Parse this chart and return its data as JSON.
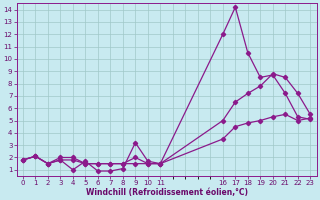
{
  "bg_color": "#c8eaf0",
  "line_color": "#8b1a8b",
  "grid_color": "#a0c8c8",
  "xlabel": "Windchill (Refroidissement éolien,°C)",
  "xlabel_color": "#6b0a6b",
  "tick_color": "#6b0a6b",
  "xlim": [
    -0.5,
    23.5
  ],
  "ylim": [
    0.5,
    14.5
  ],
  "yticks": [
    1,
    2,
    3,
    4,
    5,
    6,
    7,
    8,
    9,
    10,
    11,
    12,
    13,
    14
  ],
  "curve1_x": [
    0,
    1,
    2,
    3,
    4,
    5,
    6,
    7,
    8,
    9,
    10,
    11,
    16,
    17,
    18,
    19,
    20,
    21,
    22,
    23
  ],
  "curve1_y": [
    1.8,
    2.1,
    1.5,
    1.8,
    1.0,
    1.7,
    0.9,
    0.9,
    1.1,
    3.2,
    1.7,
    1.5,
    12.0,
    14.2,
    10.5,
    8.5,
    8.7,
    7.2,
    5.3,
    5.1
  ],
  "curve2_x": [
    0,
    1,
    2,
    3,
    4,
    5,
    6,
    7,
    8,
    9,
    10,
    11,
    16,
    17,
    18,
    19,
    20,
    21,
    22,
    23
  ],
  "curve2_y": [
    1.8,
    2.1,
    1.5,
    1.8,
    1.8,
    1.5,
    1.5,
    1.5,
    1.5,
    1.5,
    1.5,
    1.5,
    5.0,
    6.5,
    7.2,
    7.8,
    8.8,
    8.5,
    7.2,
    5.5
  ],
  "curve3_x": [
    0,
    1,
    2,
    3,
    4,
    5,
    6,
    7,
    8,
    9,
    10,
    11,
    16,
    17,
    18,
    19,
    20,
    21,
    22,
    23
  ],
  "curve3_y": [
    1.8,
    2.1,
    1.5,
    2.0,
    2.0,
    1.5,
    1.5,
    1.5,
    1.5,
    2.0,
    1.5,
    1.5,
    3.5,
    4.5,
    4.8,
    5.0,
    5.3,
    5.5,
    5.0,
    5.2
  ],
  "xtick_positions": [
    0,
    1,
    2,
    3,
    4,
    5,
    6,
    7,
    8,
    9,
    10,
    11,
    16,
    17,
    18,
    19,
    20,
    21,
    22,
    23
  ],
  "xtick_labels": [
    "0",
    "1",
    "2",
    "3",
    "4",
    "5",
    "6",
    "7",
    "8",
    "9",
    "10",
    "11",
    "16",
    "17",
    "18",
    "19",
    "20",
    "21",
    "22",
    "23"
  ],
  "figsize": [
    3.2,
    2.0
  ],
  "dpi": 100
}
